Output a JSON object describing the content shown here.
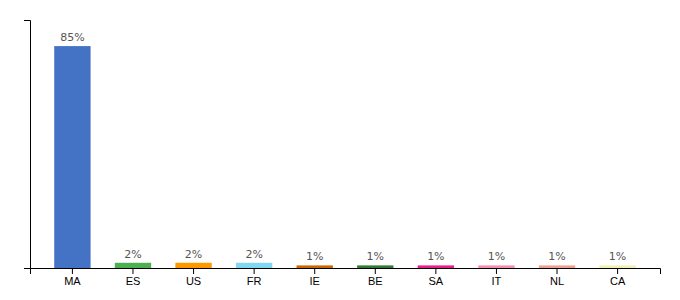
{
  "chart_data": {
    "type": "bar",
    "categories": [
      "MA",
      "ES",
      "US",
      "FR",
      "IE",
      "BE",
      "SA",
      "IT",
      "NL",
      "CA"
    ],
    "values": [
      85,
      2,
      2,
      2,
      1,
      1,
      1,
      1,
      1,
      1
    ],
    "value_labels": [
      "85%",
      "2%",
      "2%",
      "2%",
      "1%",
      "1%",
      "1%",
      "1%",
      "1%",
      "1%"
    ],
    "colors": [
      "#4472c4",
      "#4caf50",
      "#ff9800",
      "#80d8f0",
      "#cc6600",
      "#2e7d32",
      "#e91e8c",
      "#f48fb1",
      "#f0a090",
      "#f0f0b0"
    ],
    "ylim": [
      0,
      95
    ],
    "data_labels": true,
    "grid": false,
    "tick_labels": "x"
  }
}
